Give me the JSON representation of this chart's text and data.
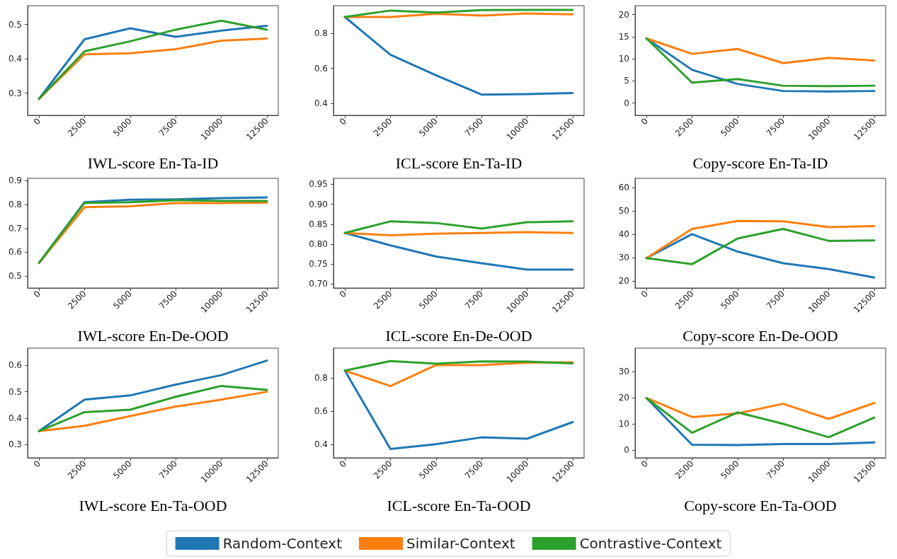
{
  "chart_data": [
    {
      "type": "line",
      "xlabel": "IWL-score En-Ta-ID",
      "x": [
        0,
        2500,
        5000,
        7500,
        10000,
        12500
      ],
      "xlim": [
        -625,
        13125
      ],
      "xticks": [
        0,
        2500,
        5000,
        7500,
        10000,
        12500
      ],
      "ylim": [
        0.235,
        0.555
      ],
      "yticks": [
        0.3,
        0.4,
        0.5
      ],
      "grid": false,
      "legend": "bottom",
      "series": [
        {
          "name": "Random-Context",
          "color": "#1f77b4",
          "values": [
            0.283,
            0.457,
            0.489,
            0.464,
            0.482,
            0.496
          ]
        },
        {
          "name": "Similar-Context",
          "color": "#ff7f0e",
          "values": [
            0.283,
            0.413,
            0.416,
            0.428,
            0.453,
            0.459
          ]
        },
        {
          "name": "Contrastive-Context",
          "color": "#2ca02c",
          "values": [
            0.283,
            0.422,
            0.451,
            0.485,
            0.511,
            0.485
          ]
        }
      ]
    },
    {
      "type": "line",
      "xlabel": "ICL-score En-Ta-ID",
      "x": [
        0,
        2500,
        5000,
        7500,
        10000,
        12500
      ],
      "xlim": [
        -625,
        13125
      ],
      "xticks": [
        0,
        2500,
        5000,
        7500,
        10000,
        12500
      ],
      "ylim": [
        0.33,
        0.96
      ],
      "yticks": [
        0.4,
        0.6,
        0.8
      ],
      "grid": false,
      "legend": "bottom",
      "series": [
        {
          "name": "Random-Context",
          "color": "#1f77b4",
          "values": [
            0.895,
            0.678,
            0.56,
            0.449,
            0.452,
            0.458
          ]
        },
        {
          "name": "Similar-Context",
          "color": "#ff7f0e",
          "values": [
            0.895,
            0.895,
            0.913,
            0.903,
            0.915,
            0.91
          ]
        },
        {
          "name": "Contrastive-Context",
          "color": "#2ca02c",
          "values": [
            0.895,
            0.932,
            0.92,
            0.935,
            0.936,
            0.936
          ]
        }
      ]
    },
    {
      "type": "line",
      "xlabel": "Copy-score En-Ta-ID",
      "x": [
        0,
        2500,
        5000,
        7500,
        10000,
        12500
      ],
      "xlim": [
        -625,
        13125
      ],
      "xticks": [
        0,
        2500,
        5000,
        7500,
        10000,
        12500
      ],
      "ylim": [
        -2.8,
        22
      ],
      "yticks": [
        0,
        5,
        10,
        15,
        20
      ],
      "grid": false,
      "legend": "bottom",
      "series": [
        {
          "name": "Random-Context",
          "color": "#1f77b4",
          "values": [
            14.6,
            7.5,
            4.3,
            2.7,
            2.6,
            2.7
          ]
        },
        {
          "name": "Similar-Context",
          "color": "#ff7f0e",
          "values": [
            14.6,
            11.1,
            12.2,
            9.0,
            10.2,
            9.6
          ]
        },
        {
          "name": "Contrastive-Context",
          "color": "#2ca02c",
          "values": [
            14.6,
            4.6,
            5.4,
            3.9,
            3.8,
            3.9
          ]
        }
      ]
    },
    {
      "type": "line",
      "xlabel": "IWL-score En-De-OOD",
      "x": [
        0,
        2500,
        5000,
        7500,
        10000,
        12500
      ],
      "xlim": [
        -625,
        13125
      ],
      "xticks": [
        0,
        2500,
        5000,
        7500,
        10000,
        12500
      ],
      "ylim": [
        0.45,
        0.91
      ],
      "yticks": [
        0.5,
        0.6,
        0.7,
        0.8,
        0.9
      ],
      "grid": false,
      "legend": "bottom",
      "series": [
        {
          "name": "Random-Context",
          "color": "#1f77b4",
          "values": [
            0.555,
            0.81,
            0.82,
            0.822,
            0.827,
            0.83
          ]
        },
        {
          "name": "Similar-Context",
          "color": "#ff7f0e",
          "values": [
            0.555,
            0.789,
            0.793,
            0.806,
            0.806,
            0.808
          ]
        },
        {
          "name": "Contrastive-Context",
          "color": "#2ca02c",
          "values": [
            0.555,
            0.807,
            0.81,
            0.818,
            0.815,
            0.815
          ]
        }
      ]
    },
    {
      "type": "line",
      "xlabel": "ICL-score En-De-OOD",
      "x": [
        0,
        2500,
        5000,
        7500,
        10000,
        12500
      ],
      "xlim": [
        -625,
        13125
      ],
      "xticks": [
        0,
        2500,
        5000,
        7500,
        10000,
        12500
      ],
      "ylim": [
        0.69,
        0.965
      ],
      "yticks": [
        {
          "value": 0.7,
          "label": "0.70"
        },
        {
          "value": 0.75,
          "label": "0.75"
        },
        {
          "value": 0.8,
          "label": "0.80"
        },
        {
          "value": 0.85,
          "label": "0.85"
        },
        {
          "value": 0.9,
          "label": "0.90"
        },
        {
          "value": 0.95,
          "label": "0.95"
        }
      ],
      "grid": false,
      "legend": "bottom",
      "series": [
        {
          "name": "Random-Context",
          "color": "#1f77b4",
          "values": [
            0.828,
            0.797,
            0.769,
            0.752,
            0.736,
            0.736
          ]
        },
        {
          "name": "Similar-Context",
          "color": "#ff7f0e",
          "values": [
            0.828,
            0.822,
            0.826,
            0.828,
            0.83,
            0.828
          ]
        },
        {
          "name": "Contrastive-Context",
          "color": "#2ca02c",
          "values": [
            0.828,
            0.857,
            0.853,
            0.839,
            0.855,
            0.857
          ]
        }
      ]
    },
    {
      "type": "line",
      "xlabel": "Copy-score En-De-OOD",
      "x": [
        0,
        2500,
        5000,
        7500,
        10000,
        12500
      ],
      "xlim": [
        -625,
        13125
      ],
      "xticks": [
        0,
        2500,
        5000,
        7500,
        10000,
        12500
      ],
      "ylim": [
        17,
        64
      ],
      "yticks": [
        20,
        30,
        40,
        50,
        60
      ],
      "grid": false,
      "legend": "bottom",
      "series": [
        {
          "name": "Random-Context",
          "color": "#1f77b4",
          "values": [
            29.8,
            40.1,
            32.6,
            27.6,
            25.1,
            21.5
          ]
        },
        {
          "name": "Similar-Context",
          "color": "#ff7f0e",
          "values": [
            29.8,
            42.3,
            45.7,
            45.6,
            43.1,
            43.5
          ]
        },
        {
          "name": "Contrastive-Context",
          "color": "#2ca02c",
          "values": [
            29.8,
            27.2,
            38.2,
            42.3,
            37.2,
            37.4
          ]
        }
      ]
    },
    {
      "type": "line",
      "xlabel": "IWL-score En-Ta-OOD",
      "x": [
        0,
        2500,
        5000,
        7500,
        10000,
        12500
      ],
      "xlim": [
        -625,
        13125
      ],
      "xticks": [
        0,
        2500,
        5000,
        7500,
        10000,
        12500
      ],
      "ylim": [
        0.25,
        0.665
      ],
      "yticks": [
        0.3,
        0.4,
        0.5,
        0.6
      ],
      "grid": false,
      "legend": "bottom",
      "series": [
        {
          "name": "Random-Context",
          "color": "#1f77b4",
          "values": [
            0.351,
            0.47,
            0.486,
            0.527,
            0.563,
            0.618
          ]
        },
        {
          "name": "Similar-Context",
          "color": "#ff7f0e",
          "values": [
            0.351,
            0.371,
            0.408,
            0.444,
            0.47,
            0.5
          ]
        },
        {
          "name": "Contrastive-Context",
          "color": "#2ca02c",
          "values": [
            0.351,
            0.423,
            0.432,
            0.481,
            0.522,
            0.507
          ]
        }
      ]
    },
    {
      "type": "line",
      "xlabel": "ICL-score En-Ta-OOD",
      "x": [
        0,
        2500,
        5000,
        7500,
        10000,
        12500
      ],
      "xlim": [
        -625,
        13125
      ],
      "xticks": [
        0,
        2500,
        5000,
        7500,
        10000,
        12500
      ],
      "ylim": [
        0.32,
        0.98
      ],
      "yticks": [
        0.4,
        0.6,
        0.8
      ],
      "grid": false,
      "legend": "bottom",
      "series": [
        {
          "name": "Random-Context",
          "color": "#1f77b4",
          "values": [
            0.845,
            0.373,
            0.402,
            0.443,
            0.435,
            0.535
          ]
        },
        {
          "name": "Similar-Context",
          "color": "#ff7f0e",
          "values": [
            0.845,
            0.752,
            0.878,
            0.878,
            0.893,
            0.895
          ]
        },
        {
          "name": "Contrastive-Context",
          "color": "#2ca02c",
          "values": [
            0.845,
            0.902,
            0.886,
            0.9,
            0.899,
            0.888
          ]
        }
      ]
    },
    {
      "type": "line",
      "xlabel": "Copy-score En-Ta-OOD",
      "x": [
        0,
        2500,
        5000,
        7500,
        10000,
        12500
      ],
      "xlim": [
        -625,
        13125
      ],
      "xticks": [
        0,
        2500,
        5000,
        7500,
        10000,
        12500
      ],
      "ylim": [
        -3,
        39
      ],
      "yticks": [
        0,
        10,
        20,
        30
      ],
      "grid": false,
      "legend": "bottom",
      "series": [
        {
          "name": "Random-Context",
          "color": "#1f77b4",
          "values": [
            19.9,
            2.0,
            1.9,
            2.3,
            2.3,
            2.9
          ]
        },
        {
          "name": "Similar-Context",
          "color": "#ff7f0e",
          "values": [
            19.9,
            12.6,
            14.0,
            17.7,
            11.9,
            18.0
          ]
        },
        {
          "name": "Contrastive-Context",
          "color": "#2ca02c",
          "values": [
            19.9,
            6.6,
            14.4,
            10.0,
            4.9,
            12.4
          ]
        }
      ]
    }
  ]
}
